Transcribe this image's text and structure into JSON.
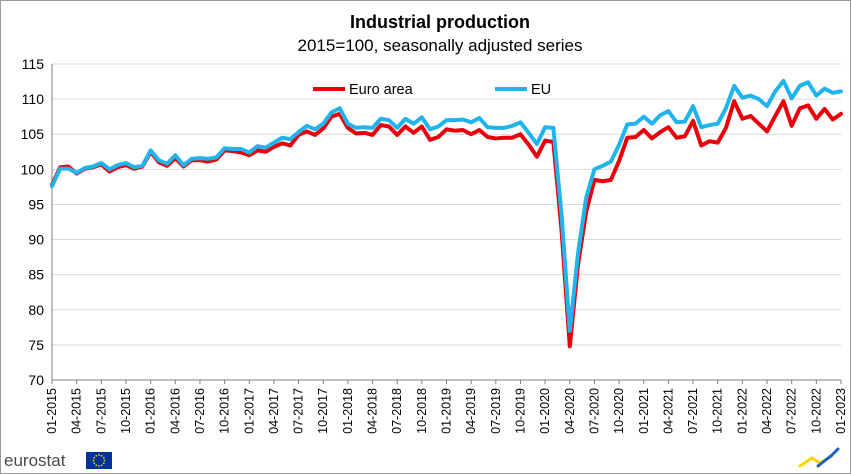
{
  "chart_data": {
    "type": "line",
    "title": "Industrial production",
    "subtitle": "2015=100, seasonally adjusted series",
    "xlabel": "",
    "ylabel": "",
    "ylim": [
      70,
      115
    ],
    "yticks": [
      "70",
      "75",
      "80",
      "85",
      "90",
      "95",
      "100",
      "105",
      "110",
      "115"
    ],
    "xticks": [
      {
        "index": 0,
        "label": "01-2015"
      },
      {
        "index": 3,
        "label": "04-2015"
      },
      {
        "index": 6,
        "label": "07-2015"
      },
      {
        "index": 9,
        "label": "10-2015"
      },
      {
        "index": 12,
        "label": "01-2016"
      },
      {
        "index": 15,
        "label": "04-2016"
      },
      {
        "index": 18,
        "label": "07-2016"
      },
      {
        "index": 21,
        "label": "10-2016"
      },
      {
        "index": 24,
        "label": "01-2017"
      },
      {
        "index": 27,
        "label": "04-2017"
      },
      {
        "index": 30,
        "label": "07-2017"
      },
      {
        "index": 33,
        "label": "10-2017"
      },
      {
        "index": 36,
        "label": "01-2018"
      },
      {
        "index": 39,
        "label": "04-2018"
      },
      {
        "index": 42,
        "label": "07-2018"
      },
      {
        "index": 45,
        "label": "10-2018"
      },
      {
        "index": 48,
        "label": "01-2019"
      },
      {
        "index": 51,
        "label": "04-2019"
      },
      {
        "index": 54,
        "label": "07-2019"
      },
      {
        "index": 57,
        "label": "10-2019"
      },
      {
        "index": 60,
        "label": "01-2020"
      },
      {
        "index": 63,
        "label": "04-2020"
      },
      {
        "index": 66,
        "label": "07-2020"
      },
      {
        "index": 69,
        "label": "10-2020"
      },
      {
        "index": 72,
        "label": "01-2021"
      },
      {
        "index": 75,
        "label": "04-2021"
      },
      {
        "index": 78,
        "label": "07-2021"
      },
      {
        "index": 81,
        "label": "10-2021"
      },
      {
        "index": 84,
        "label": "01-2022"
      },
      {
        "index": 87,
        "label": "04-2022"
      },
      {
        "index": 90,
        "label": "07-2022"
      },
      {
        "index": 93,
        "label": "10-2022"
      },
      {
        "index": 96,
        "label": "01-2023"
      }
    ],
    "legend_position": "top-center",
    "grid": "horizontal",
    "series": [
      {
        "name": "Euro area",
        "color": "#e8000b",
        "values": [
          97.8,
          100.3,
          100.4,
          99.4,
          100.1,
          100.3,
          100.7,
          99.7,
          100.3,
          100.6,
          100.1,
          100.4,
          102.5,
          101.0,
          100.5,
          101.6,
          100.4,
          101.3,
          101.3,
          101.1,
          101.4,
          102.7,
          102.6,
          102.4,
          102.0,
          102.7,
          102.5,
          103.2,
          103.7,
          103.4,
          104.9,
          105.4,
          104.9,
          105.8,
          107.5,
          107.9,
          105.9,
          105.1,
          105.2,
          104.9,
          106.3,
          106.1,
          104.9,
          106.1,
          105.2,
          106.1,
          104.2,
          104.6,
          105.7,
          105.5,
          105.6,
          105.0,
          105.6,
          104.6,
          104.4,
          104.5,
          104.5,
          105.0,
          103.5,
          101.8,
          104.1,
          103.9,
          91.3,
          74.8,
          86.4,
          94.0,
          98.5,
          98.3,
          98.5,
          101.2,
          104.5,
          104.6,
          105.6,
          104.4,
          105.3,
          106.0,
          104.5,
          104.7,
          106.9,
          103.4,
          104.0,
          103.8,
          105.9,
          109.7,
          107.2,
          107.6,
          106.5,
          105.4,
          107.6,
          109.7,
          106.2,
          108.7,
          109.1,
          107.2,
          108.6,
          107.1,
          107.9
        ]
      },
      {
        "name": "EU",
        "color": "#1fb5ec",
        "values": [
          97.6,
          100.1,
          100.1,
          99.5,
          100.2,
          100.4,
          100.9,
          100.0,
          100.6,
          100.9,
          100.3,
          100.5,
          102.7,
          101.3,
          100.8,
          102.0,
          100.6,
          101.5,
          101.6,
          101.5,
          101.7,
          103.0,
          102.9,
          102.9,
          102.4,
          103.3,
          103.1,
          103.8,
          104.5,
          104.3,
          105.3,
          106.2,
          105.7,
          106.5,
          108.1,
          108.7,
          106.5,
          105.9,
          106.0,
          105.9,
          107.2,
          107.0,
          105.9,
          107.2,
          106.5,
          107.4,
          105.7,
          106.1,
          107.0,
          107.0,
          107.1,
          106.7,
          107.3,
          106.0,
          105.9,
          105.9,
          106.2,
          106.7,
          105.2,
          103.6,
          106.0,
          105.9,
          93.5,
          77.0,
          88.0,
          96.0,
          100.0,
          100.5,
          101.1,
          103.5,
          106.4,
          106.5,
          107.5,
          106.5,
          107.7,
          108.3,
          106.7,
          106.8,
          109.0,
          106.0,
          106.3,
          106.5,
          108.7,
          111.9,
          110.2,
          110.5,
          110.0,
          109.0,
          111.1,
          112.6,
          110.1,
          111.9,
          112.4,
          110.5,
          111.5,
          110.9,
          111.1
        ]
      }
    ]
  },
  "branding": {
    "logo_text": "eurostat"
  },
  "colors": {
    "grid": "#d9d9d9",
    "axis": "#7f7f7f",
    "eu_flag": "#003399",
    "eu_star": "#ffcc00",
    "corner_blue": "#1f5fc9",
    "corner_yellow": "#ffd200"
  }
}
